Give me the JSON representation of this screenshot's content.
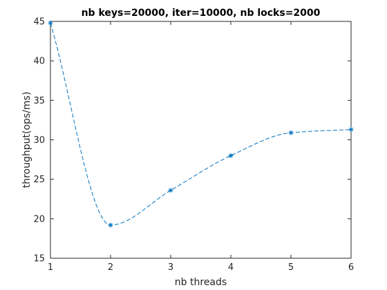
{
  "chart_data": {
    "type": "line",
    "title": "nb keys=20000, iter=10000, nb locks=2000",
    "xlabel": "nb threads",
    "ylabel": "throughput(ops/ms)",
    "xlim": [
      1,
      6
    ],
    "ylim": [
      15,
      45
    ],
    "xticks": [
      "1",
      "2",
      "3",
      "4",
      "5",
      "6"
    ],
    "yticks": [
      "15",
      "20",
      "25",
      "30",
      "35",
      "40",
      "45"
    ],
    "grid": false,
    "legend": "none",
    "series": [
      {
        "x": [
          1,
          2,
          3,
          4,
          5,
          6
        ],
        "y": [
          44.8,
          19.2,
          23.6,
          28.0,
          30.9,
          31.3
        ],
        "color": "#0072BD",
        "line_style": "dashed",
        "marker": "asterisk",
        "smooth": true
      }
    ]
  }
}
